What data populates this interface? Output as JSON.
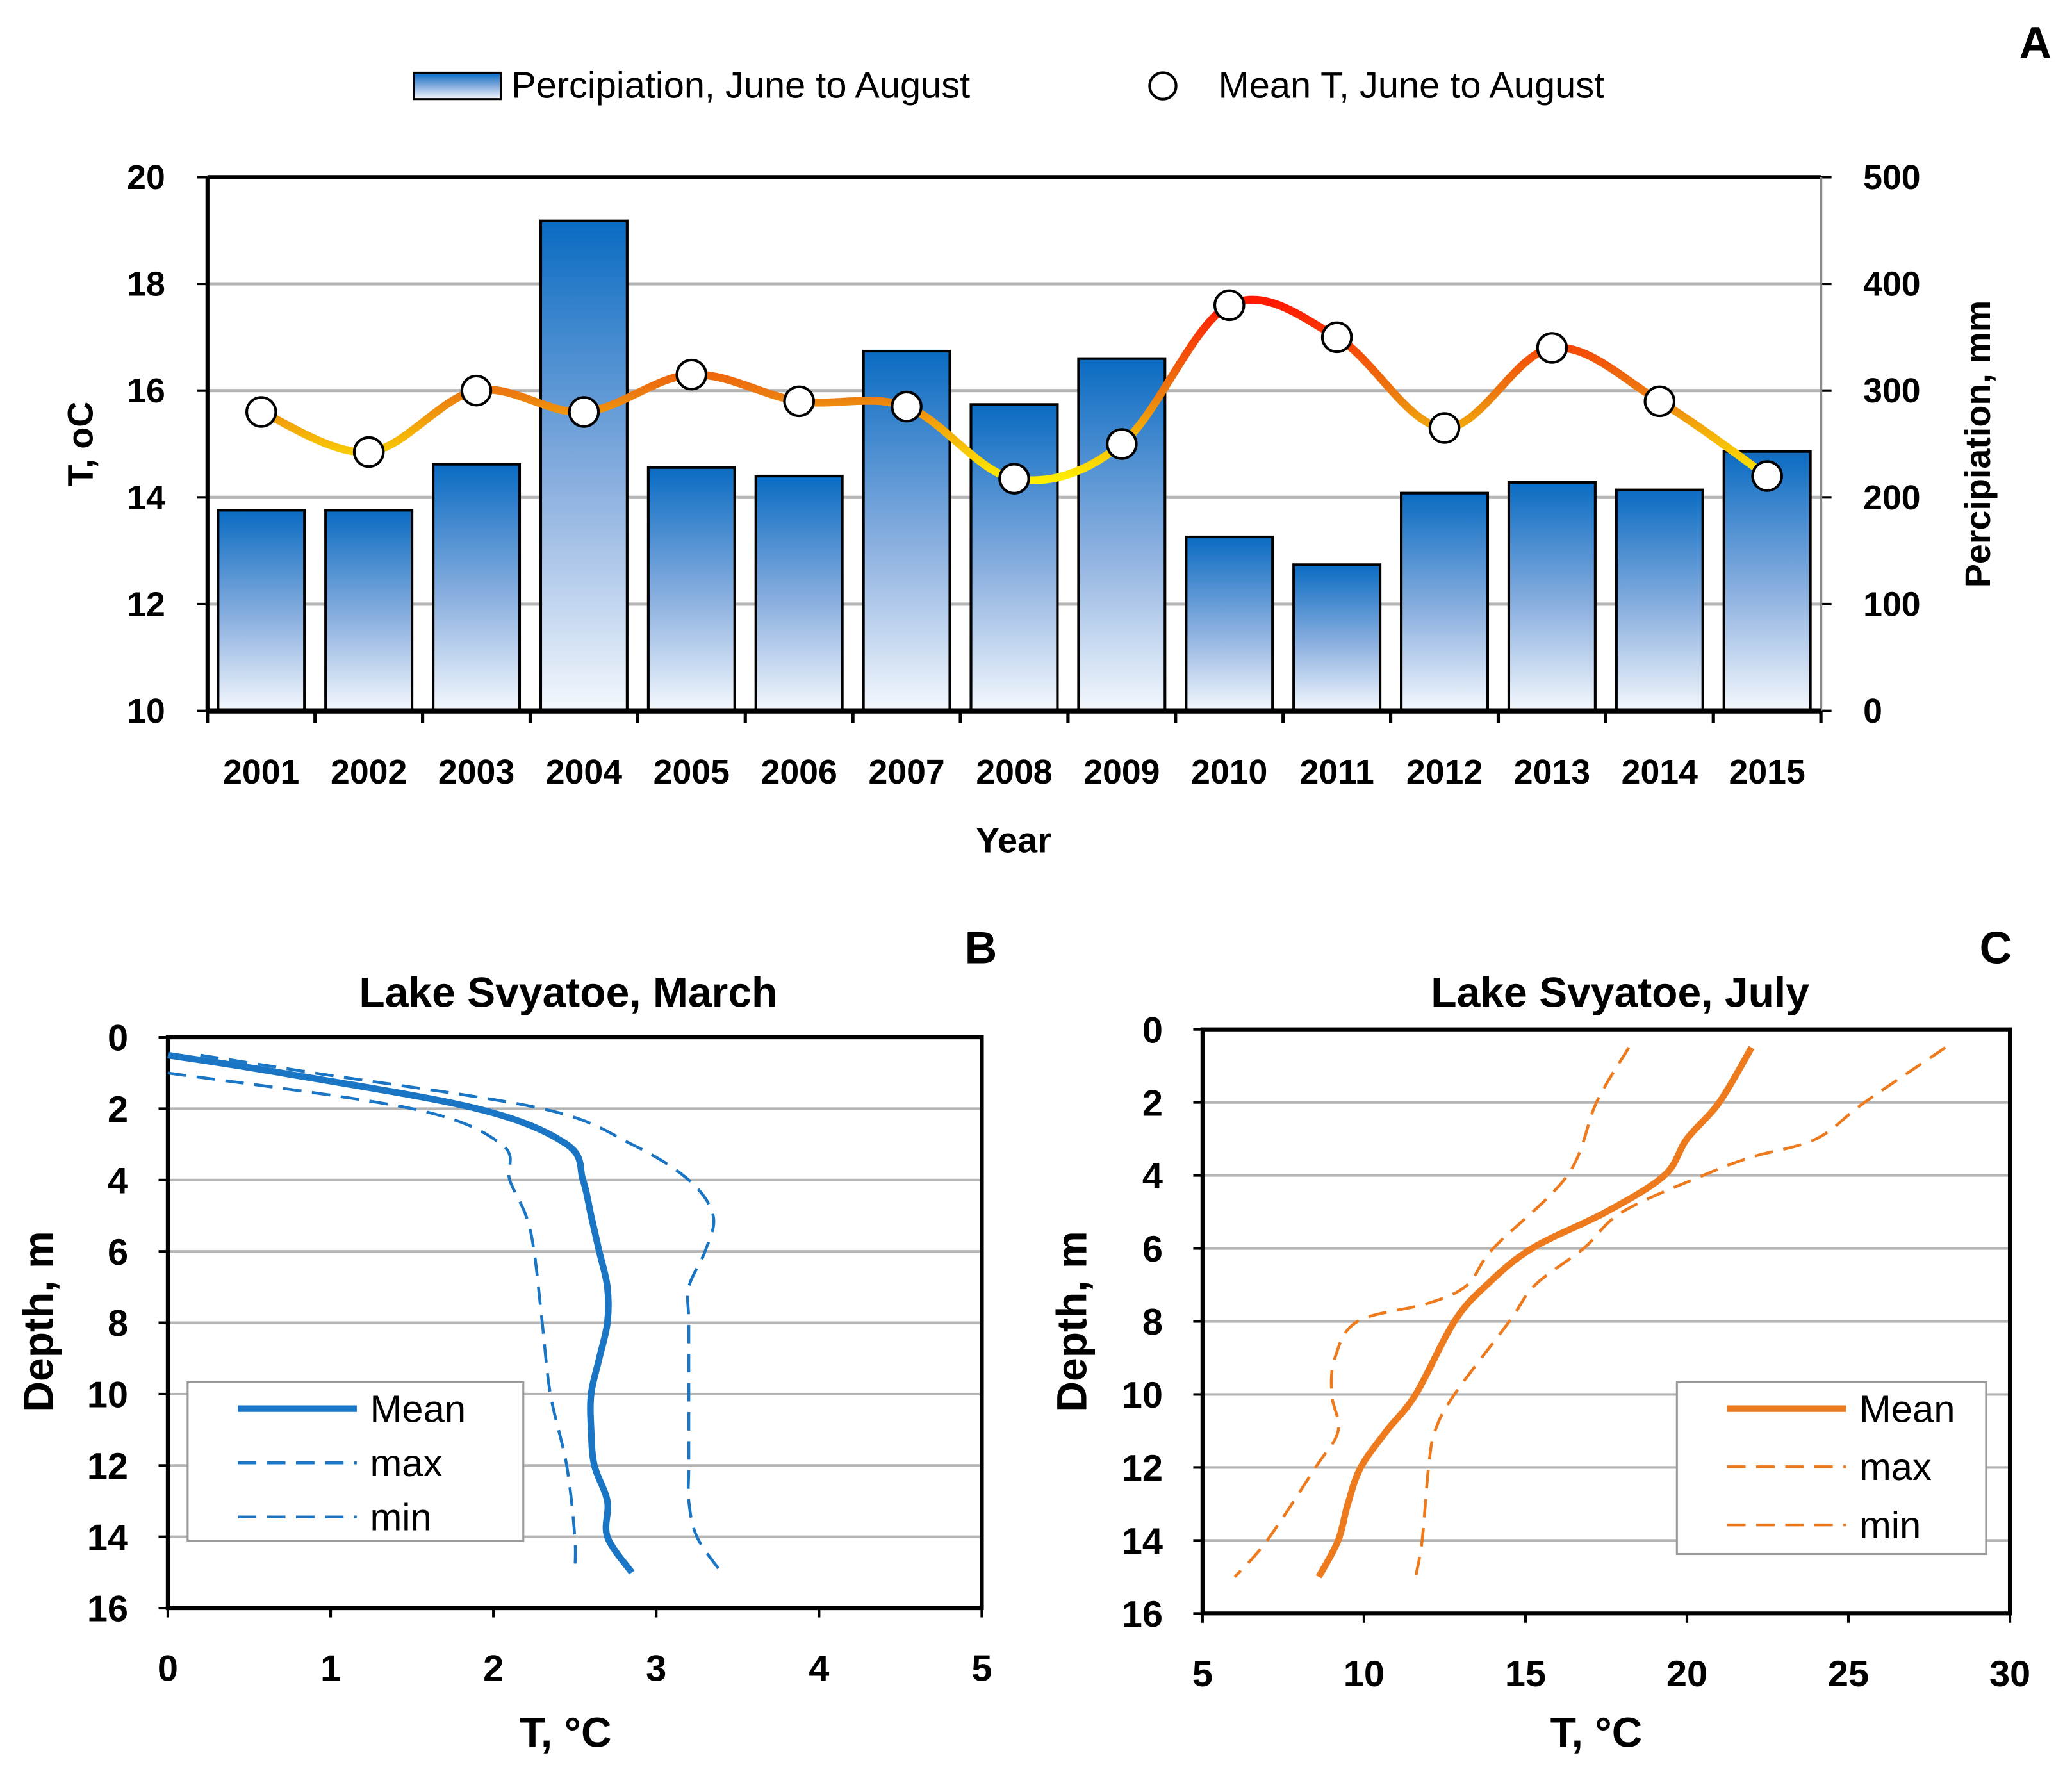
{
  "chart_data": [
    {
      "type": "bar+line",
      "panel_label": "A",
      "xlabel": "Year",
      "ylabel_left": "T, oC",
      "ylabel_right": "Percipiation, mm",
      "categories": [
        "2001",
        "2002",
        "2003",
        "2004",
        "2005",
        "2006",
        "2007",
        "2008",
        "2009",
        "2010",
        "2011",
        "2012",
        "2013",
        "2014",
        "2015"
      ],
      "ylim_left": [
        10,
        20
      ],
      "yticks_left": [
        "10",
        "12",
        "14",
        "16",
        "18",
        "20"
      ],
      "ylim_right": [
        0,
        500
      ],
      "yticks_right": [
        "0",
        "100",
        "200",
        "300",
        "400",
        "500"
      ],
      "grid": true,
      "legend_position": "top",
      "series": [
        {
          "name": "Percipiation, June to August",
          "type": "bar",
          "axis": "right",
          "color": "#0E6FC0",
          "values": [
            188,
            188,
            231,
            459,
            228,
            220,
            337,
            287,
            330,
            163,
            137,
            204,
            214,
            207,
            243
          ]
        },
        {
          "name": "Mean T, June to August",
          "type": "line",
          "axis": "left",
          "color": "#F08010",
          "values": [
            15.6,
            14.85,
            16.0,
            15.6,
            16.3,
            15.8,
            15.7,
            14.35,
            15.0,
            17.6,
            17.0,
            15.3,
            16.8,
            15.8,
            14.4
          ]
        }
      ]
    },
    {
      "type": "line",
      "panel_label": "B",
      "title": "Lake Svyatoe, March",
      "xlabel": "T, °C",
      "ylabel": "Depth, m",
      "xlim": [
        0,
        5
      ],
      "xticks": [
        "0",
        "1",
        "2",
        "3",
        "4",
        "5"
      ],
      "ylim": [
        16,
        0
      ],
      "yticks": [
        "0",
        "2",
        "4",
        "6",
        "8",
        "10",
        "12",
        "14",
        "16"
      ],
      "grid": true,
      "legend_position": "bottom-left",
      "color": "#1A75C4",
      "series": [
        {
          "name": "Mean",
          "style": "solid",
          "points": [
            [
              0,
              0.5
            ],
            [
              0.7,
              1
            ],
            [
              1.9,
              2
            ],
            [
              2.45,
              3
            ],
            [
              2.55,
              4
            ],
            [
              2.6,
              5
            ],
            [
              2.65,
              6
            ],
            [
              2.7,
              7
            ],
            [
              2.7,
              8
            ],
            [
              2.65,
              9
            ],
            [
              2.6,
              10
            ],
            [
              2.6,
              11
            ],
            [
              2.62,
              12
            ],
            [
              2.7,
              13
            ],
            [
              2.7,
              14
            ],
            [
              2.85,
              15
            ]
          ]
        },
        {
          "name": "max",
          "style": "dashed",
          "points": [
            [
              0.2,
              0.5
            ],
            [
              0.9,
              1
            ],
            [
              2.3,
              2
            ],
            [
              2.85,
              3
            ],
            [
              3.2,
              4
            ],
            [
              3.35,
              5
            ],
            [
              3.3,
              6
            ],
            [
              3.2,
              7
            ],
            [
              3.2,
              8
            ],
            [
              3.2,
              10
            ],
            [
              3.2,
              12
            ],
            [
              3.2,
              13
            ],
            [
              3.25,
              14
            ],
            [
              3.4,
              15
            ]
          ]
        },
        {
          "name": "min",
          "style": "dashed",
          "points": [
            [
              0,
              1
            ],
            [
              1.5,
              2
            ],
            [
              2.05,
              3
            ],
            [
              2.1,
              4
            ],
            [
              2.2,
              5
            ],
            [
              2.25,
              6
            ],
            [
              2.3,
              8
            ],
            [
              2.35,
              10
            ],
            [
              2.45,
              12
            ],
            [
              2.5,
              14
            ],
            [
              2.5,
              15
            ]
          ]
        }
      ]
    },
    {
      "type": "line",
      "panel_label": "C",
      "title": "Lake Svyatoe, July",
      "xlabel": "T, °C",
      "ylabel": "Depth, m",
      "xlim": [
        5,
        30
      ],
      "xticks": [
        "5",
        "10",
        "15",
        "20",
        "25",
        "30"
      ],
      "ylim": [
        16,
        0
      ],
      "yticks": [
        "0",
        "2",
        "4",
        "6",
        "8",
        "10",
        "12",
        "14",
        "16"
      ],
      "grid": true,
      "legend_position": "bottom-right",
      "color": "#EE7A1E",
      "series": [
        {
          "name": "Mean",
          "style": "solid",
          "points": [
            [
              22,
              0.5
            ],
            [
              21,
              2
            ],
            [
              20,
              3
            ],
            [
              19.3,
              4
            ],
            [
              17.5,
              5
            ],
            [
              15.2,
              6
            ],
            [
              13.8,
              7
            ],
            [
              12.8,
              8
            ],
            [
              11.6,
              10
            ],
            [
              10.7,
              11
            ],
            [
              9.9,
              12
            ],
            [
              9.5,
              13
            ],
            [
              9.2,
              14
            ],
            [
              8.6,
              15
            ]
          ]
        },
        {
          "name": "max",
          "style": "dashed",
          "points": [
            [
              28,
              0.5
            ],
            [
              25.5,
              2
            ],
            [
              24,
              3
            ],
            [
              22,
              3.5
            ],
            [
              20.5,
              4
            ],
            [
              18,
              5
            ],
            [
              16.8,
              6
            ],
            [
              15.3,
              7
            ],
            [
              14.5,
              8
            ],
            [
              12.8,
              10
            ],
            [
              12.2,
              11
            ],
            [
              12,
              12
            ],
            [
              11.8,
              14
            ],
            [
              11.6,
              15
            ]
          ]
        },
        {
          "name": "min",
          "style": "dashed",
          "points": [
            [
              18.2,
              0.5
            ],
            [
              17.2,
              2
            ],
            [
              16.3,
              4
            ],
            [
              14,
              6
            ],
            [
              13.2,
              7
            ],
            [
              12,
              7.5
            ],
            [
              9.8,
              8
            ],
            [
              9.1,
              9
            ],
            [
              9.0,
              10
            ],
            [
              9.2,
              11
            ],
            [
              8.5,
              12
            ],
            [
              7,
              14
            ],
            [
              6,
              15
            ]
          ]
        }
      ]
    }
  ]
}
